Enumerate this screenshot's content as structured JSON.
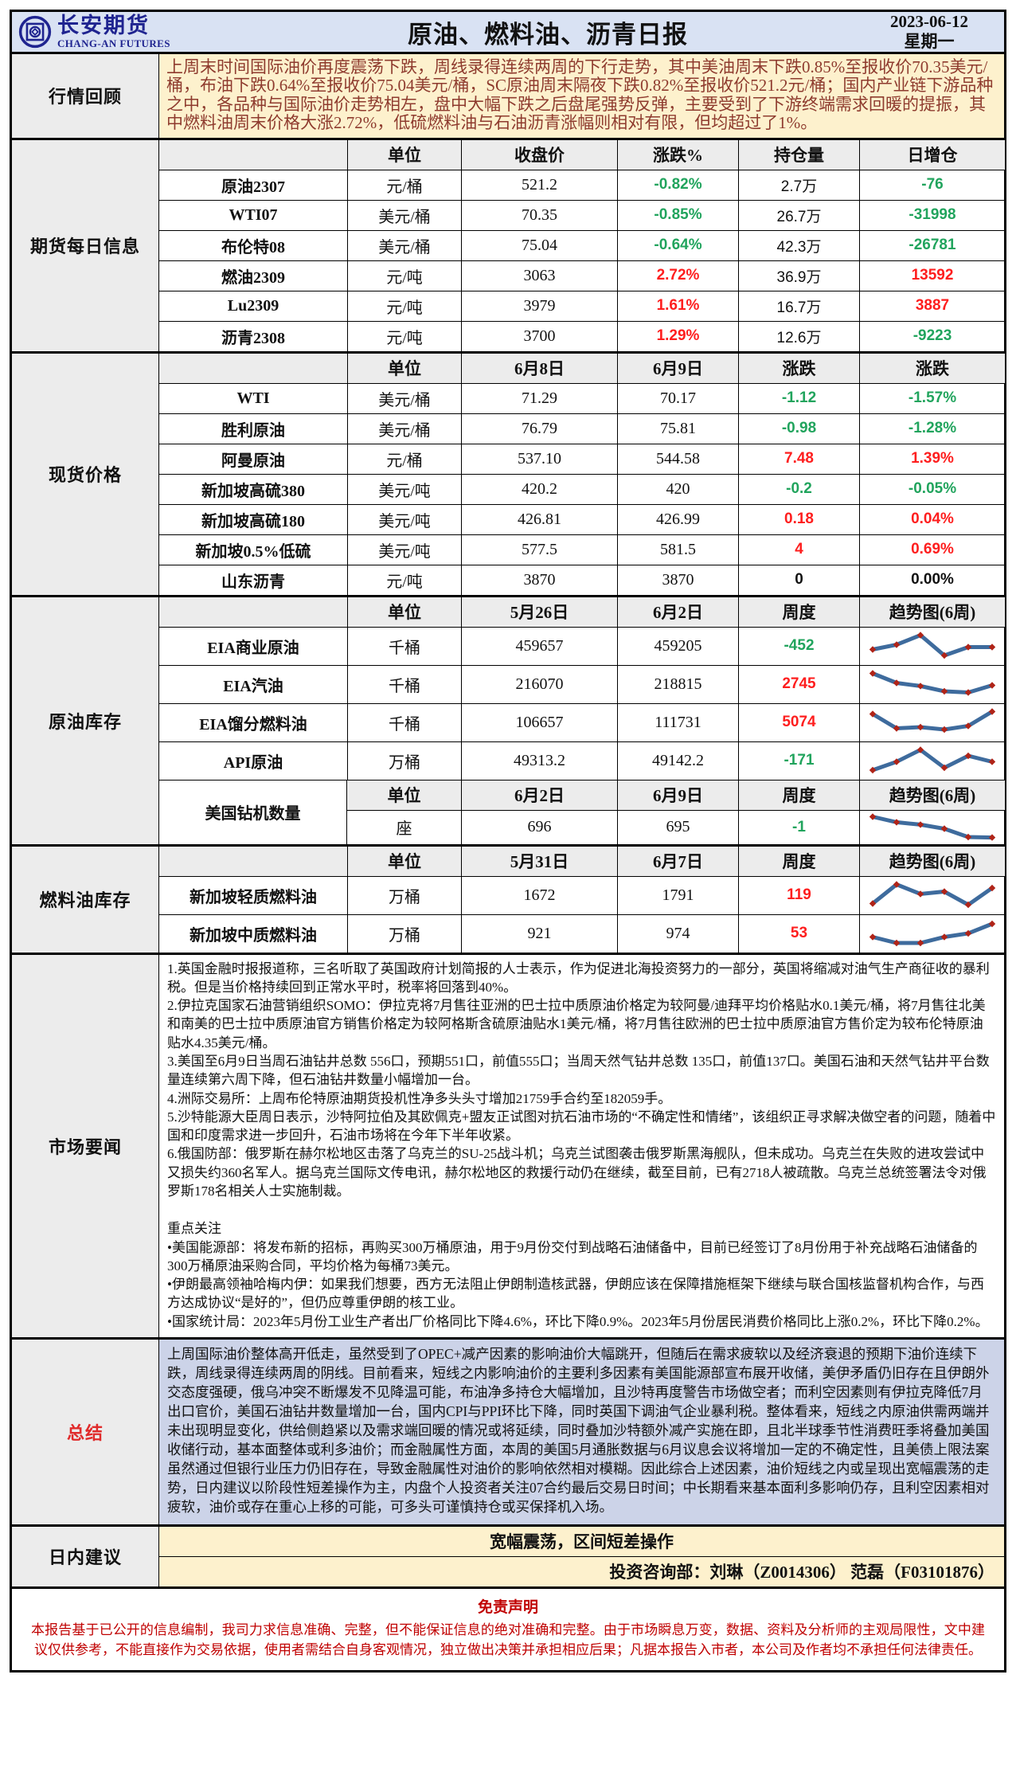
{
  "header": {
    "brand_cn": "长安期货",
    "brand_en": "CHANG-AN FUTURES",
    "title": "原油、燃料油、沥青日报",
    "date": "2023-06-12",
    "weekday": "星期一"
  },
  "colors": {
    "up_red": "#fe1e1e",
    "down_green": "#21a45d",
    "banner_bg": "#d9e2f3",
    "cream_bg": "#fdf1cd",
    "summary_bg": "#ccd3e8",
    "label_bg": "#ececec",
    "review_text": "#8e3b2e",
    "brand_navy": "#1f2490",
    "spark_line": "#3e6b9d",
    "spark_marker": "#b02418",
    "disclaimer_red": "#c00000"
  },
  "sections": {
    "review": {
      "label": "行情回顾",
      "text": "上周末时间国际油价再度震荡下跌，周线录得连续两周的下行走势，其中美油周末下跌0.85%至报收价70.35美元/桶，布油下跌0.64%至报收价75.04美元/桶，SC原油周末隔夜下跌0.82%至报收价521.2元/桶；国内产业链下游品种之中，各品种与国际油价走势相左，盘中大幅下跌之后盘尾强势反弹，主要受到了下游终端需求回暖的提振，其中燃料油周末价格大涨2.72%，低硫燃料油与石油沥青涨幅则相对有限，但均超过了1%。"
    },
    "futures": {
      "label": "期货每日信息",
      "headers": [
        "",
        "单位",
        "收盘价",
        "涨跌%",
        "持仓量",
        "日增仓"
      ],
      "rows": [
        {
          "name": "原油2307",
          "unit": "元/桶",
          "close": "521.2",
          "chg": "-0.82%",
          "oi": "2.7万",
          "oichg": "-76"
        },
        {
          "name": "WTI07",
          "unit": "美元/桶",
          "close": "70.35",
          "chg": "-0.85%",
          "oi": "26.7万",
          "oichg": "-31998"
        },
        {
          "name": "布伦特08",
          "unit": "美元/桶",
          "close": "75.04",
          "chg": "-0.64%",
          "oi": "42.3万",
          "oichg": "-26781"
        },
        {
          "name": "燃油2309",
          "unit": "元/吨",
          "close": "3063",
          "chg": "2.72%",
          "oi": "36.9万",
          "oichg": "13592"
        },
        {
          "name": "Lu2309",
          "unit": "元/吨",
          "close": "3979",
          "chg": "1.61%",
          "oi": "16.7万",
          "oichg": "3887"
        },
        {
          "name": "沥青2308",
          "unit": "元/吨",
          "close": "3700",
          "chg": "1.29%",
          "oi": "12.6万",
          "oichg": "-9223"
        }
      ]
    },
    "spot": {
      "label": "现货价格",
      "headers": [
        "",
        "单位",
        "6月8日",
        "6月9日",
        "涨跌",
        "涨跌"
      ],
      "rows": [
        {
          "name": "WTI",
          "unit": "美元/桶",
          "d1": "71.29",
          "d2": "70.17",
          "chg": "-1.12",
          "pct": "-1.57%"
        },
        {
          "name": "胜利原油",
          "unit": "美元/桶",
          "d1": "76.79",
          "d2": "75.81",
          "chg": "-0.98",
          "pct": "-1.28%"
        },
        {
          "name": "阿曼原油",
          "unit": "元/桶",
          "d1": "537.10",
          "d2": "544.58",
          "chg": "7.48",
          "pct": "1.39%"
        },
        {
          "name": "新加坡高硫380",
          "unit": "美元/吨",
          "d1": "420.2",
          "d2": "420",
          "chg": "-0.2",
          "pct": "-0.05%"
        },
        {
          "name": "新加坡高硫180",
          "unit": "美元/吨",
          "d1": "426.81",
          "d2": "426.99",
          "chg": "0.18",
          "pct": "0.04%"
        },
        {
          "name": "新加坡0.5%低硫",
          "unit": "美元/吨",
          "d1": "577.5",
          "d2": "581.5",
          "chg": "4",
          "pct": "0.69%"
        },
        {
          "name": "山东沥青",
          "unit": "元/吨",
          "d1": "3870",
          "d2": "3870",
          "chg": "0",
          "pct": "0.00%"
        }
      ]
    },
    "crude_inv": {
      "label": "原油库存",
      "headers": [
        "",
        "单位",
        "5月26日",
        "6月2日",
        "周度",
        "趋势图(6周)"
      ],
      "rows": [
        {
          "name": "EIA商业原油",
          "unit": "千桶",
          "d1": "459657",
          "d2": "459205",
          "chg": "-452",
          "trend": [
            35,
            55,
            95,
            10,
            45,
            45
          ]
        },
        {
          "name": "EIA汽油",
          "unit": "千桶",
          "d1": "216070",
          "d2": "218815",
          "chg": "2745",
          "trend": [
            95,
            55,
            42,
            20,
            15,
            45
          ]
        },
        {
          "name": "EIA馏分燃料油",
          "unit": "千桶",
          "d1": "106657",
          "d2": "111731",
          "chg": "5074",
          "trend": [
            85,
            25,
            30,
            20,
            35,
            95
          ]
        },
        {
          "name": "API原油",
          "unit": "万桶",
          "d1": "49313.2",
          "d2": "49142.2",
          "chg": "-171",
          "trend": [
            10,
            45,
            95,
            20,
            70,
            45
          ]
        }
      ],
      "rig": {
        "name": "美国钻机数量",
        "headers": [
          "单位",
          "6月2日",
          "6月9日",
          "周度",
          "趋势图(6周)"
        ],
        "unit": "座",
        "d1": "696",
        "d2": "695",
        "chg": "-1",
        "trend": [
          95,
          72,
          62,
          45,
          10,
          8
        ]
      }
    },
    "fuel_inv": {
      "label": "燃料油库存",
      "headers": [
        "",
        "单位",
        "5月31日",
        "6月7日",
        "周度",
        "趋势图(6周)"
      ],
      "rows": [
        {
          "name": "新加坡轻质燃料油",
          "unit": "万桶",
          "d1": "1672",
          "d2": "1791",
          "chg": "119",
          "trend": [
            15,
            95,
            55,
            65,
            10,
            80
          ]
        },
        {
          "name": "新加坡中质燃料油",
          "unit": "万桶",
          "d1": "921",
          "d2": "974",
          "chg": "53",
          "trend": [
            35,
            10,
            10,
            35,
            50,
            90
          ]
        }
      ]
    },
    "news": {
      "label": "市场要闻",
      "items": [
        "1.英国金融时报报道称，三名听取了英国政府计划简报的人士表示，作为促进北海投资努力的一部分，英国将缩减对油气生产商征收的暴利税。但是当价格持续回到正常水平时，税率将回落到40%。",
        "2.伊拉克国家石油营销组织SOMO：伊拉克将7月售往亚洲的巴士拉中质原油价格定为较阿曼/迪拜平均价格贴水0.1美元/桶，将7月售往北美和南美的巴士拉中质原油官方销售价格定为较阿格斯含硫原油贴水1美元/桶，将7月售往欧洲的巴士拉中质原油官方售价定为较布伦特原油贴水4.35美元/桶。",
        "3.美国至6月9日当周石油钻井总数 556口，预期551口，前值555口；当周天然气钻井总数 135口，前值137口。美国石油和天然气钻井平台数量连续第六周下降，但石油钻井数量小幅增加一台。",
        "4.洲际交易所：上周布伦特原油期货投机性净多头头寸增加21759手合约至182059手。",
        "5.沙特能源大臣周日表示，沙特阿拉伯及其欧佩克+盟友正试图对抗石油市场的“不确定性和情绪”，该组织正寻求解决做空者的问题，随着中国和印度需求进一步回升，石油市场将在今年下半年收紧。",
        "6.俄国防部：俄罗斯在赫尔松地区击落了乌克兰的SU-25战斗机；乌克兰试图袭击俄罗斯黑海舰队，但未成功。乌克兰在失败的进攻尝试中又损失约360名军人。据乌克兰国际文传电讯，赫尔松地区的救援行动仍在继续，截至目前，已有2718人被疏散。乌克兰总统签署法令对俄罗斯178名相关人士实施制裁。"
      ],
      "focus_title": "重点关注",
      "focus_items": [
        "•美国能源部：将发布新的招标，再购买300万桶原油，用于9月份交付到战略石油储备中，目前已经签订了8月份用于补充战略石油储备的300万桶原油采购合同，平均价格为每桶73美元。",
        "•伊朗最高领袖哈梅内伊：如果我们想要，西方无法阻止伊朗制造核武器，伊朗应该在保障措施框架下继续与联合国核监督机构合作，与西方达成协议“是好的”，但仍应尊重伊朗的核工业。",
        "•国家统计局：2023年5月份工业生产者出厂价格同比下降4.6%，环比下降0.9%。2023年5月份居民消费价格同比上涨0.2%，环比下降0.2%。"
      ]
    },
    "summary": {
      "label": "总结",
      "text": "上周国际油价整体高开低走，虽然受到了OPEC+减产因素的影响油价大幅跳开，但随后在需求疲软以及经济衰退的预期下油价连续下跌，周线录得连续两周的阴线。目前看来，短线之内影响油价的主要利多因素有美国能源部宣布展开收储，美伊矛盾仍旧存在且伊朗外交态度强硬，俄乌冲突不断爆发不见降温可能，布油净多持仓大幅增加，且沙特再度警告市场做空者；而利空因素则有伊拉克降低7月出口官价，美国石油钻井数量增加一台，国内CPI与PPI环比下降，同时英国下调油气企业暴利税。整体看来，短线之内原油供需两端并未出现明显变化，供给侧趋紧以及需求端回暖的情况或将延续，同时叠加沙特额外减产实施在即，且北半球季节性消费旺季将叠加美国收储行动，基本面整体或利多油价；而金融属性方面，本周的美国5月通胀数据与6月议息会议将增加一定的不确定性，且美债上限法案虽然通过但银行业压力仍旧存在，导致金融属性对油价的影响依然相对模糊。因此综合上述因素，油价短线之内或呈现出宽幅震荡的走势，日内建议以阶段性短差操作为主，内盘个人投资者关注07合约最后交易日时间；中长期看来基本面利多影响仍存，且利空因素相对疲软，油价或存在重心上移的可能，可多头可谨慎持仓或买保择机入场。"
    },
    "advice": {
      "label": "日内建议",
      "line1": "宽幅震荡，区间短差操作",
      "line2": "投资咨询部：刘琳（Z0014306） 范磊（F03101876）"
    },
    "disclaimer": {
      "title": "免责声明",
      "text": "本报告基于已公开的信息编制，我司力求信息准确、完整，但不能保证信息的绝对准确和完整。由于市场瞬息万变，数据、资料及分析师的主观局限性，文中建议仅供参考，不能直接作为交易依据，使用者需结合自身客观情况，独立做出决策并承担相应后果；凡据本报告入市者，本公司及作者均不承担任何法律责任。"
    }
  }
}
